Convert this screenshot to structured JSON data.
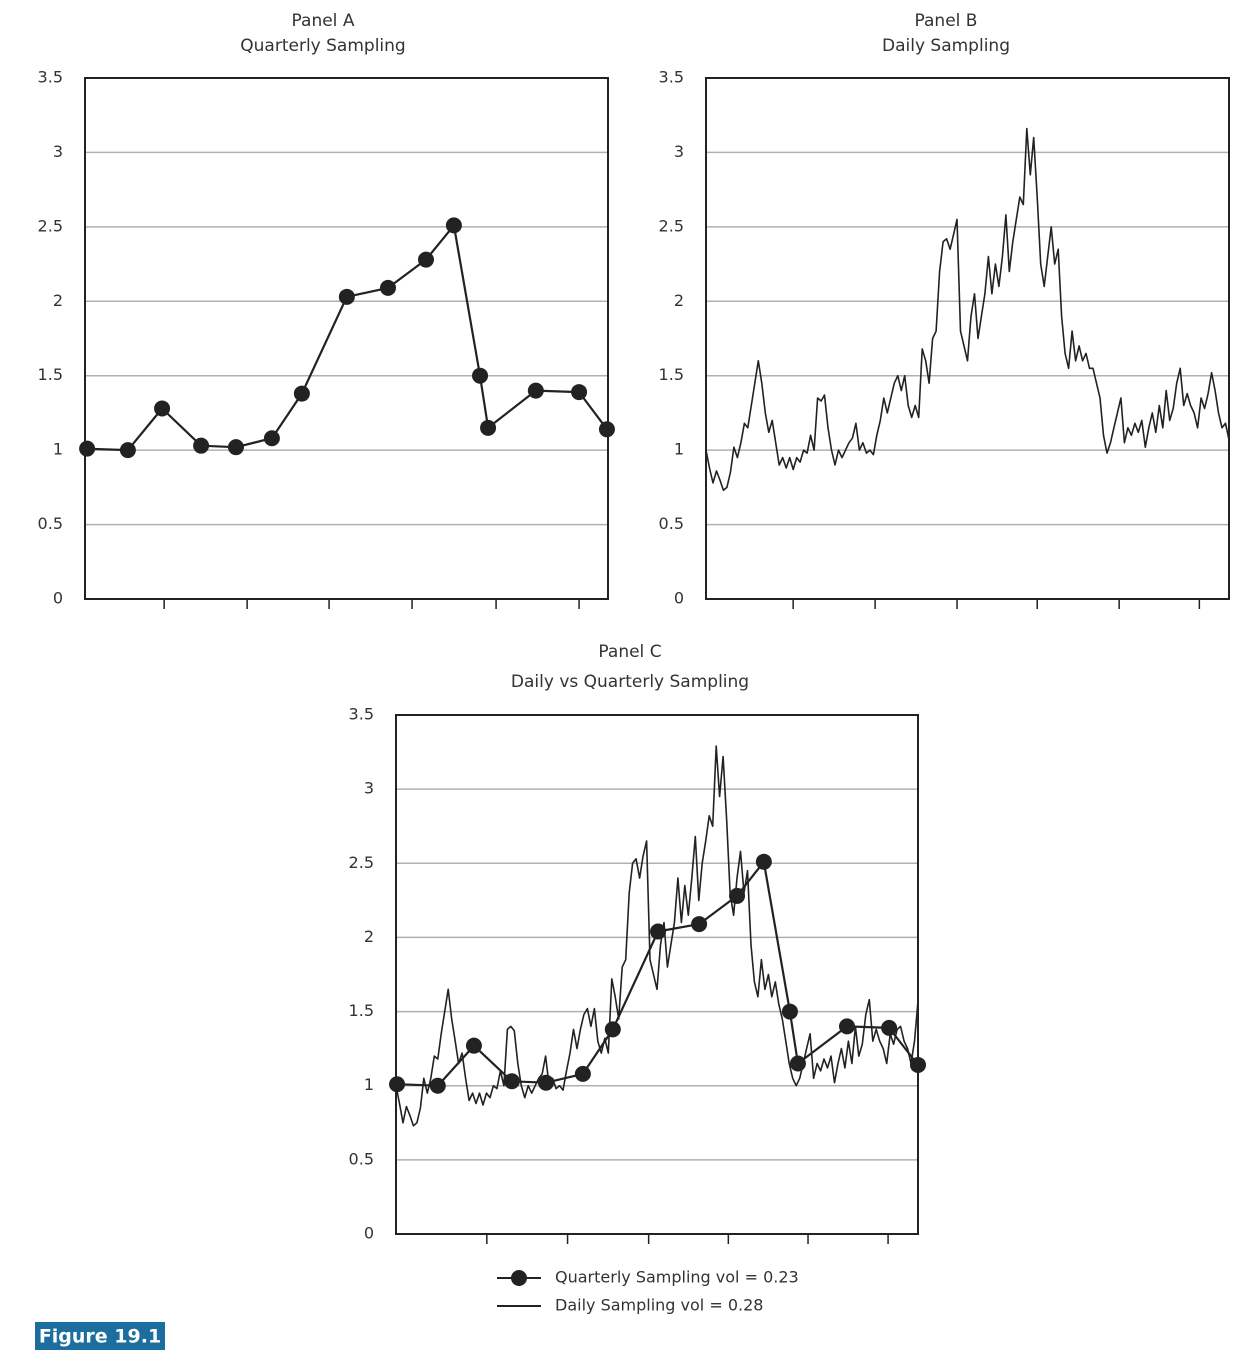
{
  "figure_label": "Figure 19.1",
  "chart_data": [
    {
      "type": "line",
      "title": "Panel  A",
      "subtitle": "Quarterly Sampling",
      "ylim": [
        0,
        3.5
      ],
      "yticks": [
        0,
        0.5,
        1,
        1.5,
        2,
        2.5,
        3,
        3.5
      ],
      "xlim": [
        0,
        150
      ],
      "xticks": [
        22.7,
        46.5,
        70,
        93.8,
        117.9,
        141.7
      ],
      "grid": true,
      "series": [
        {
          "color": "#222222",
          "marker": true,
          "x": [
            0.6,
            12.3,
            22.1,
            33.3,
            43.3,
            53.6,
            62.2,
            75.1,
            86.9,
            97.8,
            105.8,
            113.3,
            115.6,
            129.3,
            141.7,
            149.7
          ],
          "values": [
            1.01,
            1.0,
            1.28,
            1.03,
            1.02,
            1.08,
            1.38,
            2.03,
            2.09,
            2.28,
            2.51,
            1.5,
            1.15,
            1.4,
            1.39,
            1.14
          ]
        }
      ]
    },
    {
      "type": "line",
      "title": "Panel  B",
      "subtitle": "Daily Sampling",
      "ylim": [
        0,
        3.5
      ],
      "yticks": [
        0,
        0.5,
        1,
        1.5,
        2,
        2.5,
        3,
        3.5
      ],
      "xlim": [
        0,
        150
      ],
      "xticks": [
        25,
        48.5,
        72,
        95,
        118.5,
        141.5
      ],
      "grid": true,
      "series": [
        {
          "color": "#222222",
          "marker": false,
          "values": [
            1.0,
            0.88,
            0.78,
            0.86,
            0.8,
            0.73,
            0.75,
            0.85,
            1.02,
            0.95,
            1.05,
            1.18,
            1.15,
            1.3,
            1.45,
            1.6,
            1.45,
            1.25,
            1.12,
            1.2,
            1.05,
            0.9,
            0.95,
            0.88,
            0.95,
            0.87,
            0.95,
            0.92,
            1.0,
            0.98,
            1.1,
            1.0,
            1.35,
            1.33,
            1.37,
            1.15,
            1.0,
            0.9,
            1.0,
            0.95,
            1.0,
            1.05,
            1.08,
            1.18,
            1.0,
            1.05,
            0.98,
            1.0,
            0.97,
            1.1,
            1.2,
            1.35,
            1.25,
            1.35,
            1.45,
            1.5,
            1.4,
            1.5,
            1.3,
            1.22,
            1.3,
            1.22,
            1.68,
            1.6,
            1.45,
            1.75,
            1.8,
            2.2,
            2.4,
            2.42,
            2.35,
            2.45,
            2.55,
            1.8,
            1.7,
            1.6,
            1.9,
            2.05,
            1.75,
            1.9,
            2.05,
            2.3,
            2.05,
            2.25,
            2.1,
            2.3,
            2.58,
            2.2,
            2.4,
            2.55,
            2.7,
            2.65,
            3.16,
            2.85,
            3.1,
            2.7,
            2.25,
            2.1,
            2.3,
            2.5,
            2.25,
            2.35,
            1.9,
            1.65,
            1.55,
            1.8,
            1.6,
            1.7,
            1.6,
            1.65,
            1.55,
            1.55,
            1.45,
            1.35,
            1.1,
            0.98,
            1.05,
            1.15,
            1.25,
            1.35,
            1.05,
            1.15,
            1.1,
            1.18,
            1.12,
            1.2,
            1.02,
            1.15,
            1.25,
            1.12,
            1.3,
            1.15,
            1.4,
            1.2,
            1.28,
            1.45,
            1.55,
            1.3,
            1.38,
            1.3,
            1.25,
            1.15,
            1.35,
            1.28,
            1.38,
            1.52,
            1.4,
            1.25,
            1.15,
            1.18,
            1.07
          ]
        }
      ]
    },
    {
      "type": "line",
      "title": "Panel  C",
      "subtitle": "Daily vs Quarterly Sampling",
      "ylim": [
        0,
        3.5
      ],
      "yticks": [
        0,
        0.5,
        1,
        1.5,
        2,
        2.5,
        3,
        3.5
      ],
      "xlim": [
        0,
        150
      ],
      "xticks": [
        26.1,
        49.3,
        72.6,
        95.5,
        118.4,
        141.4
      ],
      "grid": true,
      "legend": "bottom",
      "series": [
        {
          "name": "Quarterly Sampling vol = 0.23",
          "color": "#222222",
          "marker": true,
          "x": [
            0.3,
            12.0,
            22.4,
            33.3,
            43.1,
            53.7,
            62.3,
            75.3,
            87.1,
            98.0,
            105.7,
            113.2,
            115.5,
            129.6,
            141.7,
            150
          ],
          "values": [
            1.01,
            1.0,
            1.27,
            1.03,
            1.02,
            1.08,
            1.38,
            2.04,
            2.09,
            2.28,
            2.51,
            1.5,
            1.15,
            1.4,
            1.39,
            1.14
          ]
        },
        {
          "name": "Daily Sampling vol = 0.28",
          "color": "#222222",
          "marker": false,
          "values": [
            1.0,
            0.88,
            0.75,
            0.86,
            0.8,
            0.73,
            0.75,
            0.85,
            1.05,
            0.95,
            1.05,
            1.2,
            1.18,
            1.35,
            1.5,
            1.65,
            1.45,
            1.3,
            1.15,
            1.22,
            1.05,
            0.9,
            0.95,
            0.88,
            0.95,
            0.87,
            0.95,
            0.92,
            1.0,
            0.98,
            1.1,
            1.0,
            1.38,
            1.4,
            1.37,
            1.15,
            1.0,
            0.92,
            1.0,
            0.95,
            1.0,
            1.05,
            1.08,
            1.2,
            1.0,
            1.05,
            0.98,
            1.0,
            0.97,
            1.1,
            1.22,
            1.38,
            1.25,
            1.38,
            1.48,
            1.52,
            1.4,
            1.52,
            1.3,
            1.22,
            1.32,
            1.22,
            1.72,
            1.6,
            1.45,
            1.8,
            1.85,
            2.3,
            2.5,
            2.53,
            2.4,
            2.55,
            2.65,
            1.85,
            1.75,
            1.65,
            1.95,
            2.1,
            1.8,
            1.95,
            2.1,
            2.4,
            2.1,
            2.35,
            2.15,
            2.4,
            2.68,
            2.25,
            2.5,
            2.65,
            2.82,
            2.75,
            3.29,
            2.95,
            3.22,
            2.8,
            2.3,
            2.15,
            2.4,
            2.58,
            2.3,
            2.45,
            1.95,
            1.7,
            1.6,
            1.85,
            1.65,
            1.75,
            1.6,
            1.7,
            1.55,
            1.45,
            1.3,
            1.15,
            1.05,
            1.0,
            1.05,
            1.15,
            1.25,
            1.35,
            1.05,
            1.15,
            1.1,
            1.18,
            1.12,
            1.2,
            1.02,
            1.15,
            1.25,
            1.12,
            1.3,
            1.15,
            1.4,
            1.2,
            1.28,
            1.48,
            1.58,
            1.3,
            1.38,
            1.3,
            1.25,
            1.15,
            1.35,
            1.28,
            1.38,
            1.4,
            1.3,
            1.25,
            1.15,
            1.3,
            1.57
          ]
        }
      ]
    }
  ]
}
